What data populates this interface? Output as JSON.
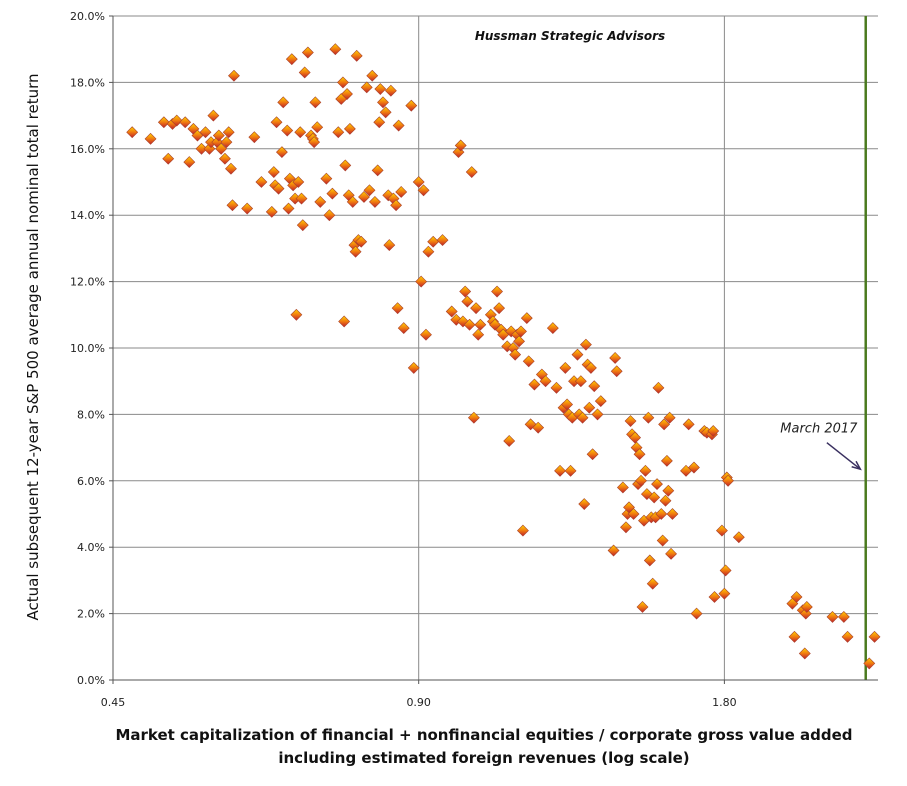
{
  "chart_data": {
    "type": "scatter",
    "title": "",
    "watermark": "Hussman Strategic Advisors",
    "ylabel": "Actual subsequent 12-year S&P 500 average annual nominal total return",
    "xlabel_line1": "Market capitalization of financial + nonfinancial equities / corporate gross value added",
    "xlabel_line2": "including estimated foreign revenues (log scale)",
    "x_scale": "log",
    "xlim": [
      0.45,
      2.55
    ],
    "ylim": [
      0,
      20
    ],
    "x_ticks": [
      0.45,
      0.9,
      1.8
    ],
    "x_tick_labels": [
      "0.45",
      "0.90",
      "1.80"
    ],
    "y_ticks": [
      0,
      2,
      4,
      6,
      8,
      10,
      12,
      14,
      16,
      18,
      20
    ],
    "y_tick_labels": [
      "0.0%",
      "2.0%",
      "4.0%",
      "6.0%",
      "8.0%",
      "10.0%",
      "12.0%",
      "14.0%",
      "16.0%",
      "18.0%",
      "20.0%"
    ],
    "grid": true,
    "marker": "diamond",
    "marker_colors": [
      "#ffd200",
      "#f07a10",
      "#c0202a"
    ],
    "reference_line": {
      "x": 2.48,
      "color": "#4b7a1f"
    },
    "annotation": {
      "text": "March 2017",
      "x_text": 2.23,
      "y_text": 7.45,
      "x_arrow": 2.45,
      "y_arrow": 6.35,
      "color": "#3a3060"
    },
    "points": [
      [
        0.47,
        16.5
      ],
      [
        0.49,
        16.3
      ],
      [
        0.505,
        16.8
      ],
      [
        0.51,
        15.7
      ],
      [
        0.515,
        16.75
      ],
      [
        0.52,
        16.85
      ],
      [
        0.53,
        16.8
      ],
      [
        0.535,
        15.6
      ],
      [
        0.54,
        16.6
      ],
      [
        0.545,
        16.4
      ],
      [
        0.55,
        16.0
      ],
      [
        0.555,
        16.5
      ],
      [
        0.56,
        16.0
      ],
      [
        0.562,
        16.2
      ],
      [
        0.565,
        17.0
      ],
      [
        0.57,
        16.2
      ],
      [
        0.572,
        16.4
      ],
      [
        0.575,
        16.0
      ],
      [
        0.58,
        15.7
      ],
      [
        0.582,
        16.2
      ],
      [
        0.585,
        16.5
      ],
      [
        0.588,
        15.4
      ],
      [
        0.59,
        14.3
      ],
      [
        0.592,
        18.2
      ],
      [
        0.61,
        14.2
      ],
      [
        0.62,
        16.35
      ],
      [
        0.63,
        15.0
      ],
      [
        0.645,
        14.1
      ],
      [
        0.648,
        15.3
      ],
      [
        0.65,
        14.9
      ],
      [
        0.652,
        16.8
      ],
      [
        0.655,
        14.8
      ],
      [
        0.66,
        15.9
      ],
      [
        0.662,
        17.4
      ],
      [
        0.668,
        16.55
      ],
      [
        0.67,
        14.2
      ],
      [
        0.672,
        15.1
      ],
      [
        0.675,
        18.7
      ],
      [
        0.677,
        14.9
      ],
      [
        0.68,
        14.5
      ],
      [
        0.682,
        11.0
      ],
      [
        0.685,
        15.0
      ],
      [
        0.688,
        16.5
      ],
      [
        0.69,
        14.5
      ],
      [
        0.692,
        13.7
      ],
      [
        0.695,
        18.3
      ],
      [
        0.7,
        18.9
      ],
      [
        0.705,
        16.4
      ],
      [
        0.708,
        16.3
      ],
      [
        0.71,
        16.2
      ],
      [
        0.712,
        17.4
      ],
      [
        0.715,
        16.65
      ],
      [
        0.72,
        14.4
      ],
      [
        0.73,
        15.1
      ],
      [
        0.735,
        14.0
      ],
      [
        0.74,
        14.65
      ],
      [
        0.745,
        19.0
      ],
      [
        0.75,
        16.5
      ],
      [
        0.755,
        17.5
      ],
      [
        0.758,
        18.0
      ],
      [
        0.76,
        10.8
      ],
      [
        0.762,
        15.5
      ],
      [
        0.765,
        17.65
      ],
      [
        0.768,
        14.6
      ],
      [
        0.77,
        16.6
      ],
      [
        0.775,
        14.4
      ],
      [
        0.778,
        13.1
      ],
      [
        0.78,
        12.9
      ],
      [
        0.782,
        18.8
      ],
      [
        0.785,
        13.25
      ],
      [
        0.79,
        13.2
      ],
      [
        0.795,
        14.55
      ],
      [
        0.8,
        17.85
      ],
      [
        0.805,
        14.75
      ],
      [
        0.81,
        18.2
      ],
      [
        0.815,
        14.4
      ],
      [
        0.82,
        15.35
      ],
      [
        0.823,
        16.8
      ],
      [
        0.825,
        17.8
      ],
      [
        0.83,
        17.4
      ],
      [
        0.835,
        17.1
      ],
      [
        0.84,
        14.6
      ],
      [
        0.842,
        13.1
      ],
      [
        0.845,
        17.75
      ],
      [
        0.85,
        14.5
      ],
      [
        0.855,
        14.3
      ],
      [
        0.858,
        11.2
      ],
      [
        0.86,
        16.7
      ],
      [
        0.865,
        14.7
      ],
      [
        0.87,
        10.6
      ],
      [
        0.885,
        17.3
      ],
      [
        0.89,
        9.4
      ],
      [
        0.9,
        15.0
      ],
      [
        0.905,
        12.0
      ],
      [
        0.91,
        14.75
      ],
      [
        0.915,
        10.4
      ],
      [
        0.92,
        12.9
      ],
      [
        0.93,
        13.2
      ],
      [
        0.95,
        13.25
      ],
      [
        0.97,
        11.1
      ],
      [
        0.98,
        10.85
      ],
      [
        0.985,
        15.9
      ],
      [
        0.99,
        16.1
      ],
      [
        0.995,
        10.8
      ],
      [
        1.0,
        11.7
      ],
      [
        1.005,
        11.4
      ],
      [
        1.01,
        10.7
      ],
      [
        1.015,
        15.3
      ],
      [
        1.02,
        7.9
      ],
      [
        1.025,
        11.2
      ],
      [
        1.03,
        10.4
      ],
      [
        1.035,
        10.7
      ],
      [
        1.06,
        11.0
      ],
      [
        1.065,
        10.8
      ],
      [
        1.07,
        10.7
      ],
      [
        1.075,
        11.7
      ],
      [
        1.08,
        11.2
      ],
      [
        1.085,
        10.55
      ],
      [
        1.09,
        10.4
      ],
      [
        1.1,
        10.05
      ],
      [
        1.105,
        7.2
      ],
      [
        1.11,
        10.5
      ],
      [
        1.115,
        10.0
      ],
      [
        1.12,
        9.8
      ],
      [
        1.125,
        10.4
      ],
      [
        1.13,
        10.2
      ],
      [
        1.135,
        10.5
      ],
      [
        1.14,
        4.5
      ],
      [
        1.15,
        10.9
      ],
      [
        1.155,
        9.6
      ],
      [
        1.16,
        7.7
      ],
      [
        1.17,
        8.9
      ],
      [
        1.18,
        7.6
      ],
      [
        1.19,
        9.2
      ],
      [
        1.2,
        9.0
      ],
      [
        1.22,
        10.6
      ],
      [
        1.23,
        8.8
      ],
      [
        1.24,
        6.3
      ],
      [
        1.25,
        8.2
      ],
      [
        1.255,
        9.4
      ],
      [
        1.26,
        8.3
      ],
      [
        1.265,
        8.0
      ],
      [
        1.27,
        6.3
      ],
      [
        1.275,
        7.9
      ],
      [
        1.28,
        9.0
      ],
      [
        1.29,
        9.8
      ],
      [
        1.295,
        8.0
      ],
      [
        1.3,
        9.0
      ],
      [
        1.305,
        7.9
      ],
      [
        1.31,
        5.3
      ],
      [
        1.315,
        10.1
      ],
      [
        1.32,
        9.5
      ],
      [
        1.325,
        8.2
      ],
      [
        1.33,
        9.4
      ],
      [
        1.335,
        6.8
      ],
      [
        1.34,
        8.85
      ],
      [
        1.35,
        8.0
      ],
      [
        1.36,
        8.4
      ],
      [
        1.4,
        3.9
      ],
      [
        1.405,
        9.7
      ],
      [
        1.41,
        9.3
      ],
      [
        1.43,
        5.8
      ],
      [
        1.44,
        4.6
      ],
      [
        1.445,
        5.0
      ],
      [
        1.45,
        5.2
      ],
      [
        1.455,
        7.8
      ],
      [
        1.46,
        7.4
      ],
      [
        1.465,
        5.0
      ],
      [
        1.47,
        7.3
      ],
      [
        1.475,
        7.0
      ],
      [
        1.48,
        5.9
      ],
      [
        1.485,
        6.8
      ],
      [
        1.49,
        6.0
      ],
      [
        1.495,
        2.2
      ],
      [
        1.5,
        4.8
      ],
      [
        1.505,
        6.3
      ],
      [
        1.51,
        5.6
      ],
      [
        1.515,
        7.9
      ],
      [
        1.52,
        3.6
      ],
      [
        1.525,
        4.9
      ],
      [
        1.53,
        2.9
      ],
      [
        1.535,
        5.5
      ],
      [
        1.54,
        4.9
      ],
      [
        1.545,
        5.9
      ],
      [
        1.55,
        8.8
      ],
      [
        1.56,
        5.0
      ],
      [
        1.565,
        4.2
      ],
      [
        1.57,
        7.7
      ],
      [
        1.575,
        5.4
      ],
      [
        1.58,
        6.6
      ],
      [
        1.585,
        5.7
      ],
      [
        1.59,
        7.9
      ],
      [
        1.595,
        3.8
      ],
      [
        1.6,
        5.0
      ],
      [
        1.65,
        6.3
      ],
      [
        1.66,
        7.7
      ],
      [
        1.68,
        6.4
      ],
      [
        1.69,
        2.0
      ],
      [
        1.72,
        7.5
      ],
      [
        1.73,
        7.45
      ],
      [
        1.75,
        7.4
      ],
      [
        1.755,
        7.5
      ],
      [
        1.76,
        2.5
      ],
      [
        1.79,
        4.5
      ],
      [
        1.8,
        2.6
      ],
      [
        1.805,
        3.3
      ],
      [
        1.81,
        6.1
      ],
      [
        1.815,
        6.0
      ],
      [
        1.86,
        4.3
      ],
      [
        2.1,
        2.3
      ],
      [
        2.11,
        1.3
      ],
      [
        2.12,
        2.5
      ],
      [
        2.15,
        2.1
      ],
      [
        2.16,
        0.8
      ],
      [
        2.165,
        2.0
      ],
      [
        2.17,
        2.2
      ],
      [
        2.3,
        1.9
      ],
      [
        2.36,
        1.9
      ],
      [
        2.38,
        1.3
      ],
      [
        2.5,
        0.5
      ],
      [
        2.53,
        1.3
      ]
    ]
  }
}
